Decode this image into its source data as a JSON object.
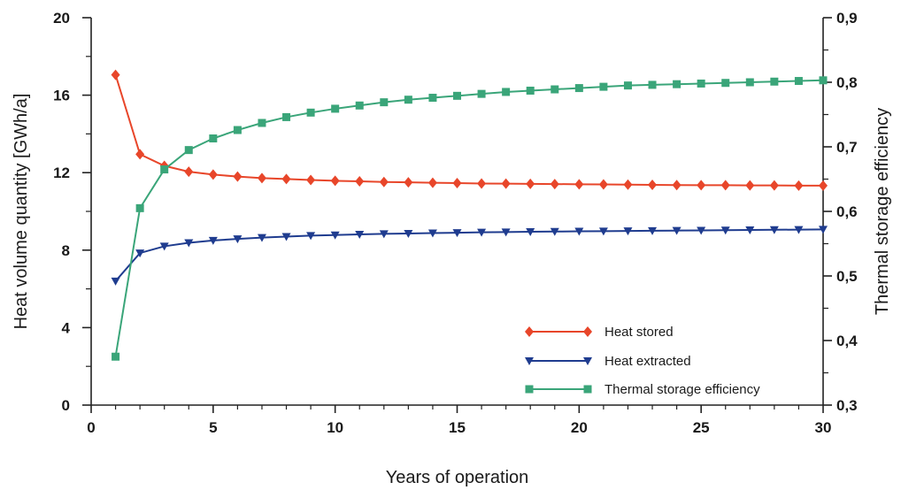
{
  "chart_data": {
    "type": "line",
    "title": "",
    "xlabel": "Years of operation",
    "ylabel_left": "Heat volume quantity [GWh/a]",
    "ylabel_right": "Thermal storage efficiency",
    "xlim": [
      0,
      30
    ],
    "ylim_left": [
      0,
      20
    ],
    "ylim_right": [
      0.3,
      0.9
    ],
    "x_ticks": [
      "0",
      "5",
      "10",
      "15",
      "20",
      "25",
      "30"
    ],
    "y_left_ticks": [
      "0",
      "4",
      "8",
      "12",
      "16",
      "20"
    ],
    "y_right_ticks": [
      "0,3",
      "0,4",
      "0,5",
      "0,6",
      "0,7",
      "0,8",
      "0,9"
    ],
    "grid": false,
    "legend_position": "bottom-right",
    "x": [
      1,
      2,
      3,
      4,
      5,
      6,
      7,
      8,
      9,
      10,
      11,
      12,
      13,
      14,
      15,
      16,
      17,
      18,
      19,
      20,
      21,
      22,
      23,
      24,
      25,
      26,
      27,
      28,
      29,
      30
    ],
    "series": [
      {
        "name": "Heat stored",
        "axis": "left",
        "marker": "diamond",
        "color": "#e8462a",
        "values": [
          17.05,
          12.95,
          12.35,
          12.05,
          11.9,
          11.8,
          11.72,
          11.67,
          11.62,
          11.58,
          11.55,
          11.52,
          11.5,
          11.48,
          11.46,
          11.44,
          11.43,
          11.42,
          11.41,
          11.4,
          11.39,
          11.38,
          11.37,
          11.36,
          11.35,
          11.35,
          11.34,
          11.34,
          11.33,
          11.33
        ]
      },
      {
        "name": "Heat extracted",
        "axis": "left",
        "marker": "triangle-down",
        "color": "#1f3c8f",
        "values": [
          6.4,
          7.85,
          8.2,
          8.38,
          8.5,
          8.58,
          8.65,
          8.7,
          8.75,
          8.78,
          8.81,
          8.84,
          8.86,
          8.88,
          8.9,
          8.92,
          8.93,
          8.95,
          8.96,
          8.97,
          8.98,
          8.99,
          9.0,
          9.01,
          9.02,
          9.03,
          9.04,
          9.05,
          9.06,
          9.07
        ]
      },
      {
        "name": "Thermal storage efficiency",
        "axis": "right",
        "marker": "square",
        "color": "#3aa579",
        "values": [
          0.375,
          0.605,
          0.665,
          0.695,
          0.713,
          0.726,
          0.737,
          0.746,
          0.753,
          0.759,
          0.764,
          0.769,
          0.773,
          0.776,
          0.779,
          0.782,
          0.785,
          0.787,
          0.789,
          0.791,
          0.793,
          0.795,
          0.796,
          0.797,
          0.798,
          0.799,
          0.8,
          0.801,
          0.802,
          0.803
        ]
      }
    ]
  }
}
